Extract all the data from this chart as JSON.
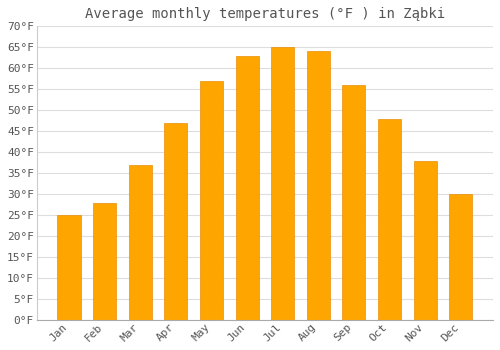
{
  "title": "Average monthly temperatures (°F ) in Ząbki",
  "months": [
    "Jan",
    "Feb",
    "Mar",
    "Apr",
    "May",
    "Jun",
    "Jul",
    "Aug",
    "Sep",
    "Oct",
    "Nov",
    "Dec"
  ],
  "values": [
    25,
    28,
    37,
    47,
    57,
    63,
    65,
    64,
    56,
    48,
    38,
    30
  ],
  "bar_color": "#FFA500",
  "bar_edge_color": "#FFA500",
  "background_color": "#ffffff",
  "grid_color": "#dddddd",
  "text_color": "#555555",
  "ylim": [
    0,
    70
  ],
  "ytick_step": 5,
  "title_fontsize": 10,
  "tick_fontsize": 8,
  "font_family": "monospace"
}
